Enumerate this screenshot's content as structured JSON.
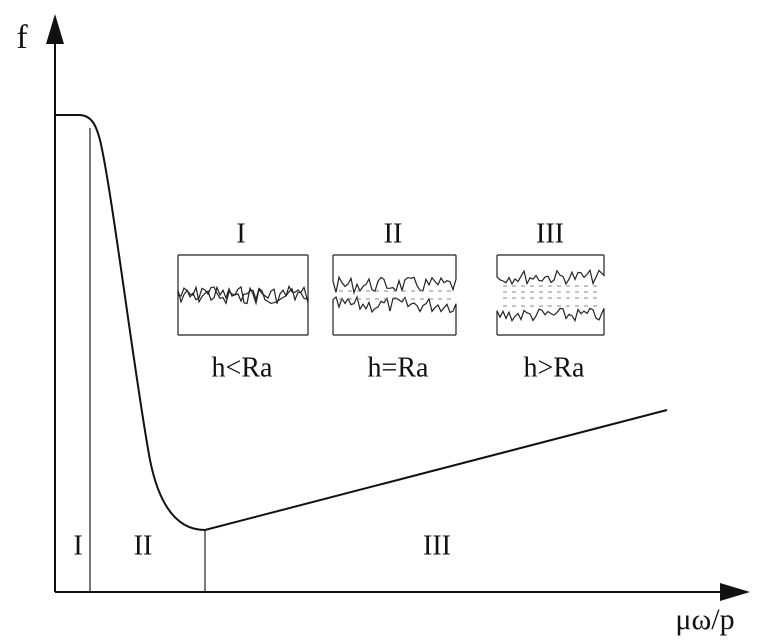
{
  "axes": {
    "y_label": "f",
    "x_label": "μω/p"
  },
  "regions": [
    {
      "label": "I"
    },
    {
      "label": "II"
    },
    {
      "label": "III"
    }
  ],
  "insets": [
    {
      "title": "I",
      "caption": "h<Ra"
    },
    {
      "title": "II",
      "caption": "h=Ra"
    },
    {
      "title": "III",
      "caption": "h>Ra"
    }
  ]
}
